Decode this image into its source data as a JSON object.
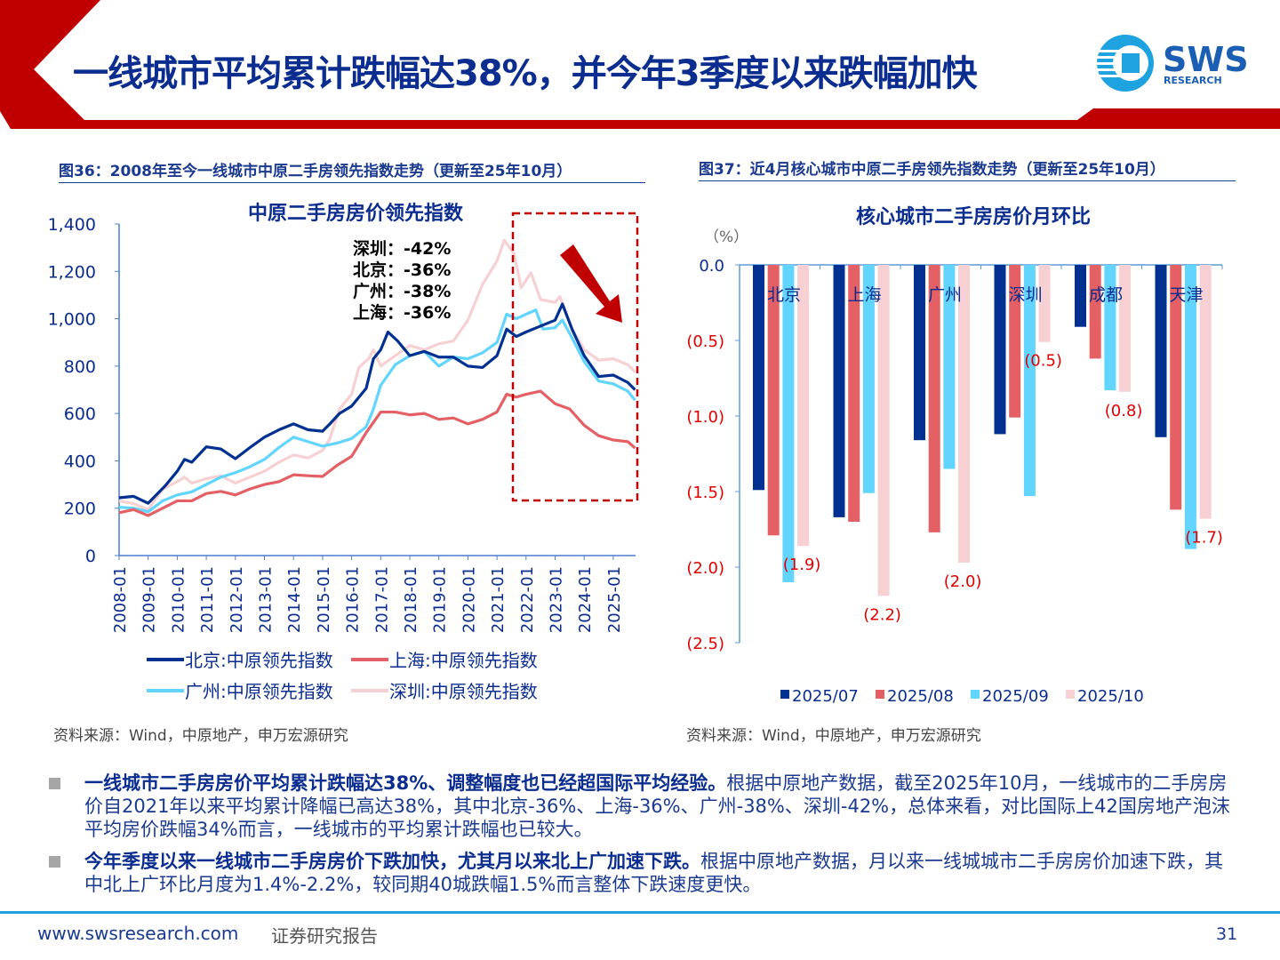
{
  "header": {
    "title": "一线城市平均累计跌幅达38%，并今年3季度以来跌幅加快",
    "logo": {
      "brand": "SWS",
      "sub": "RESEARCH"
    }
  },
  "colors": {
    "beijing": "#003090",
    "shanghai": "#e46064",
    "guangzhou": "#61d5ff",
    "shenzhen": "#f6d0d2",
    "accent_red": "#c00000",
    "navy": "#0a2d8f"
  },
  "left": {
    "caption": "图36：2008年至今一线城市中原二手房领先指数走势（更新至25年10月）",
    "source": "资料来源：Wind，中原地产，申万宏源研究",
    "annotations": [
      "深圳：-42%",
      "北京：-36%",
      "广州：-38%",
      "上海：-36%"
    ]
  },
  "right": {
    "caption": "图37：近4月核心城市中原二手房领先指数走势（更新至25年10月）",
    "source": "资料来源：Wind，中原地产，申万宏源研究"
  },
  "chart_data": [
    {
      "type": "line",
      "title": "中原二手房房价领先指数",
      "ylim": [
        0,
        1400
      ],
      "yticks": [
        "0",
        "200",
        "400",
        "600",
        "800",
        "1,000",
        "1,200",
        "1,400"
      ],
      "xticks": [
        "2008-01",
        "2009-01",
        "2010-01",
        "2011-01",
        "2012-01",
        "2013-01",
        "2014-01",
        "2015-01",
        "2016-01",
        "2017-01",
        "2018-01",
        "2019-01",
        "2020-01",
        "2021-01",
        "2022-01",
        "2023-01",
        "2024-01",
        "2025-01"
      ],
      "legend": "bottom",
      "series": [
        {
          "name": "北京:中原领先指数",
          "color": "#003090",
          "points": [
            [
              "2008-01",
              244
            ],
            [
              "2008-07",
              250
            ],
            [
              "2009-01",
              221
            ],
            [
              "2009-08",
              294
            ],
            [
              "2010-01",
              356
            ],
            [
              "2010-04",
              406
            ],
            [
              "2010-07",
              394
            ],
            [
              "2011-01",
              459
            ],
            [
              "2011-07",
              450
            ],
            [
              "2012-01",
              409
            ],
            [
              "2012-07",
              456
            ],
            [
              "2013-01",
              500
            ],
            [
              "2013-07",
              531
            ],
            [
              "2014-01",
              556
            ],
            [
              "2014-07",
              531
            ],
            [
              "2015-01",
              525
            ],
            [
              "2015-04",
              556
            ],
            [
              "2015-08",
              600
            ],
            [
              "2016-01",
              631
            ],
            [
              "2016-07",
              706
            ],
            [
              "2016-10",
              831
            ],
            [
              "2017-01",
              869
            ],
            [
              "2017-04",
              944
            ],
            [
              "2017-08",
              906
            ],
            [
              "2018-01",
              844
            ],
            [
              "2018-07",
              862
            ],
            [
              "2019-01",
              838
            ],
            [
              "2019-07",
              838
            ],
            [
              "2020-01",
              800
            ],
            [
              "2020-07",
              794
            ],
            [
              "2021-01",
              844
            ],
            [
              "2021-05",
              956
            ],
            [
              "2021-09",
              925
            ],
            [
              "2022-01",
              944
            ],
            [
              "2022-07",
              969
            ],
            [
              "2023-01",
              994
            ],
            [
              "2023-04",
              1062
            ],
            [
              "2023-08",
              956
            ],
            [
              "2024-01",
              844
            ],
            [
              "2024-07",
              756
            ],
            [
              "2025-01",
              762
            ],
            [
              "2025-07",
              731
            ],
            [
              "2025-10",
              700
            ]
          ]
        },
        {
          "name": "上海:中原领先指数",
          "color": "#e46064",
          "points": [
            [
              "2008-01",
              181
            ],
            [
              "2008-07",
              194
            ],
            [
              "2009-01",
              169
            ],
            [
              "2009-07",
              200
            ],
            [
              "2010-01",
              231
            ],
            [
              "2010-07",
              231
            ],
            [
              "2011-01",
              262
            ],
            [
              "2011-07",
              271
            ],
            [
              "2012-01",
              256
            ],
            [
              "2012-07",
              281
            ],
            [
              "2013-01",
              300
            ],
            [
              "2013-07",
              312
            ],
            [
              "2014-01",
              341
            ],
            [
              "2014-07",
              337
            ],
            [
              "2015-01",
              334
            ],
            [
              "2015-07",
              381
            ],
            [
              "2016-01",
              419
            ],
            [
              "2016-07",
              519
            ],
            [
              "2017-01",
              606
            ],
            [
              "2017-07",
              606
            ],
            [
              "2018-01",
              594
            ],
            [
              "2018-07",
              600
            ],
            [
              "2019-01",
              575
            ],
            [
              "2019-07",
              581
            ],
            [
              "2020-01",
              556
            ],
            [
              "2020-07",
              575
            ],
            [
              "2021-01",
              606
            ],
            [
              "2021-05",
              681
            ],
            [
              "2021-09",
              669
            ],
            [
              "2022-01",
              681
            ],
            [
              "2022-07",
              694
            ],
            [
              "2023-01",
              641
            ],
            [
              "2023-07",
              619
            ],
            [
              "2024-01",
              550
            ],
            [
              "2024-07",
              506
            ],
            [
              "2025-01",
              488
            ],
            [
              "2025-07",
              481
            ],
            [
              "2025-10",
              454
            ]
          ]
        },
        {
          "name": "广州:中原领先指数",
          "color": "#61d5ff",
          "points": [
            [
              "2008-01",
              204
            ],
            [
              "2008-07",
              200
            ],
            [
              "2009-01",
              185
            ],
            [
              "2009-07",
              231
            ],
            [
              "2010-01",
              256
            ],
            [
              "2010-07",
              269
            ],
            [
              "2011-01",
              300
            ],
            [
              "2011-07",
              331
            ],
            [
              "2012-01",
              350
            ],
            [
              "2012-07",
              375
            ],
            [
              "2013-01",
              406
            ],
            [
              "2013-07",
              456
            ],
            [
              "2014-01",
              500
            ],
            [
              "2014-07",
              481
            ],
            [
              "2015-01",
              462
            ],
            [
              "2015-07",
              475
            ],
            [
              "2016-01",
              494
            ],
            [
              "2016-07",
              544
            ],
            [
              "2016-10",
              619
            ],
            [
              "2017-01",
              719
            ],
            [
              "2017-07",
              806
            ],
            [
              "2018-01",
              844
            ],
            [
              "2018-07",
              862
            ],
            [
              "2019-01",
              800
            ],
            [
              "2019-07",
              838
            ],
            [
              "2020-01",
              831
            ],
            [
              "2020-07",
              856
            ],
            [
              "2021-01",
              900
            ],
            [
              "2021-05",
              1019
            ],
            [
              "2021-09",
              1000
            ],
            [
              "2022-01",
              1019
            ],
            [
              "2022-05",
              1037
            ],
            [
              "2022-08",
              956
            ],
            [
              "2023-01",
              962
            ],
            [
              "2023-04",
              994
            ],
            [
              "2023-08",
              919
            ],
            [
              "2024-01",
              819
            ],
            [
              "2024-07",
              737
            ],
            [
              "2025-01",
              725
            ],
            [
              "2025-07",
              694
            ],
            [
              "2025-10",
              656
            ]
          ]
        },
        {
          "name": "深圳:中原领先指数",
          "color": "#f6d0d2",
          "points": [
            [
              "2008-01",
              231
            ],
            [
              "2008-07",
              219
            ],
            [
              "2009-01",
              194
            ],
            [
              "2009-07",
              281
            ],
            [
              "2010-01",
              312
            ],
            [
              "2010-04",
              331
            ],
            [
              "2010-07",
              306
            ],
            [
              "2011-01",
              325
            ],
            [
              "2011-07",
              337
            ],
            [
              "2012-01",
              306
            ],
            [
              "2012-07",
              331
            ],
            [
              "2013-01",
              356
            ],
            [
              "2013-07",
              394
            ],
            [
              "2014-01",
              425
            ],
            [
              "2014-07",
              412
            ],
            [
              "2015-01",
              444
            ],
            [
              "2015-04",
              494
            ],
            [
              "2015-08",
              619
            ],
            [
              "2016-01",
              681
            ],
            [
              "2016-04",
              794
            ],
            [
              "2016-08",
              831
            ],
            [
              "2016-10",
              869
            ],
            [
              "2017-01",
              800
            ],
            [
              "2017-07",
              844
            ],
            [
              "2018-01",
              887
            ],
            [
              "2018-07",
              869
            ],
            [
              "2019-01",
              894
            ],
            [
              "2019-07",
              906
            ],
            [
              "2020-01",
              994
            ],
            [
              "2020-07",
              1144
            ],
            [
              "2021-01",
              1244
            ],
            [
              "2021-04",
              1331
            ],
            [
              "2021-08",
              1275
            ],
            [
              "2021-11",
              1131
            ],
            [
              "2022-03",
              1194
            ],
            [
              "2022-07",
              1081
            ],
            [
              "2023-01",
              1069
            ],
            [
              "2023-03",
              1094
            ],
            [
              "2023-08",
              956
            ],
            [
              "2024-01",
              869
            ],
            [
              "2024-07",
              825
            ],
            [
              "2025-01",
              831
            ],
            [
              "2025-07",
              806
            ],
            [
              "2025-10",
              775
            ]
          ]
        }
      ]
    },
    {
      "type": "bar",
      "title": "核心城市二手房房价月环比",
      "ylabel": "（%）",
      "ylim": [
        -2.5,
        0
      ],
      "yticks": [
        "0.0",
        "(0.5)",
        "(1.0)",
        "(1.5)",
        "(2.0)",
        "(2.5)"
      ],
      "categories": [
        "北京",
        "上海",
        "广州",
        "深圳",
        "成都",
        "天津"
      ],
      "legend": "bottom",
      "series": [
        {
          "name": "2025/07",
          "color": "#003090",
          "values": [
            -1.49,
            -1.67,
            -1.16,
            -1.12,
            -0.41,
            -1.14
          ]
        },
        {
          "name": "2025/08",
          "color": "#e46064",
          "values": [
            -1.79,
            -1.7,
            -1.77,
            -1.01,
            -0.62,
            -1.62
          ]
        },
        {
          "name": "2025/09",
          "color": "#61d5ff",
          "values": [
            -2.1,
            -1.51,
            -1.35,
            -1.53,
            -0.83,
            -1.88
          ]
        },
        {
          "name": "2025/10",
          "color": "#f6d0d2",
          "values": [
            -1.86,
            -2.19,
            -1.97,
            -0.51,
            -0.84,
            -1.68
          ],
          "data_labels": [
            "(1.9)",
            "(2.2)",
            "(2.0)",
            "(0.5)",
            "(0.8)",
            "(1.7)"
          ]
        }
      ]
    }
  ],
  "bullets": [
    {
      "bold": "一线城市二手房房价平均累计跌幅达38%、调整幅度也已经超国际平均经验。",
      "text": "根据中原地产数据，截至2025年10月，一线城市的二手房房价自2021年以来平均累计降幅已高达38%，其中北京-36%、上海-36%、广州-38%、深圳-42%，总体来看，对比国际上42国房地产泡沫平均房价跌幅34%而言，一线城市的平均累计跌幅也已较大。"
    },
    {
      "bold": "今年季度以来一线城市二手房房价下跌加快，尤其月以来北上广加速下跌。",
      "text": "根据中原地产数据，月以来一线城城市二手房房价加速下跌，其中北上广环比月度为1.4%-2.2%，较同期40城跌幅1.5%而言整体下跌速度更快。"
    }
  ],
  "footer": {
    "url": "www.swsresearch.com",
    "label": "证券研究报告",
    "page": "31"
  }
}
